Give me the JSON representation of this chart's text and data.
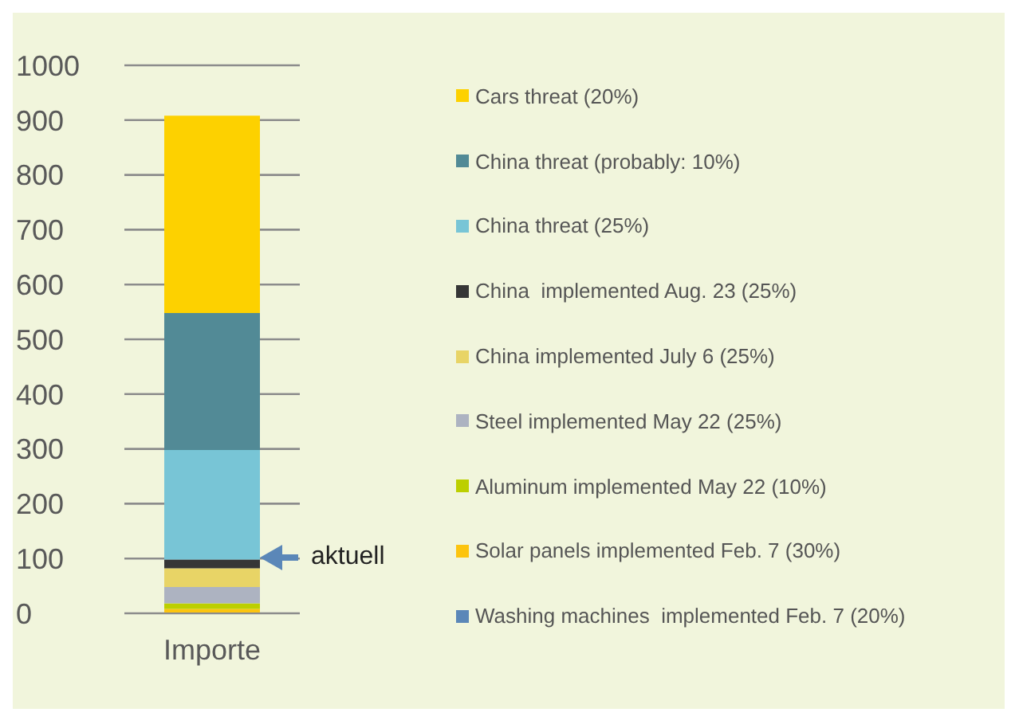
{
  "chart_data": {
    "type": "bar",
    "stacked": true,
    "categories": [
      "Importe"
    ],
    "series": [
      {
        "name": "Washing machines  implemented Feb. 7 (20%)",
        "color": "#5b87b8",
        "values": [
          null
        ]
      },
      {
        "name": "Solar panels implemented Feb. 7 (30%)",
        "color": "#fcc40f",
        "values": [
          8
        ]
      },
      {
        "name": "Aluminum implemented May 22 (10%)",
        "color": "#bccf00",
        "values": [
          10
        ]
      },
      {
        "name": "Steel implemented May 22 (25%)",
        "color": "#adb3c1",
        "values": [
          30
        ]
      },
      {
        "name": "China implemented July 6 (25%)",
        "color": "#e8d466",
        "values": [
          34
        ]
      },
      {
        "name": "China  implemented Aug. 23 (25%)",
        "color": "#363636",
        "values": [
          16
        ]
      },
      {
        "name": "China threat (25%)",
        "color": "#78c5d6",
        "values": [
          200
        ]
      },
      {
        "name": "China threat (probably: 10%)",
        "color": "#528a96",
        "values": [
          250
        ]
      },
      {
        "name": "Cars threat (20%)",
        "color": "#fdd100",
        "values": [
          360
        ]
      }
    ],
    "ylim": [
      0,
      1000
    ],
    "yticks": [
      0,
      100,
      200,
      300,
      400,
      500,
      600,
      700,
      800,
      900,
      1000
    ],
    "grid": "y",
    "legend": "right",
    "annotations": [
      "aktuell"
    ]
  }
}
